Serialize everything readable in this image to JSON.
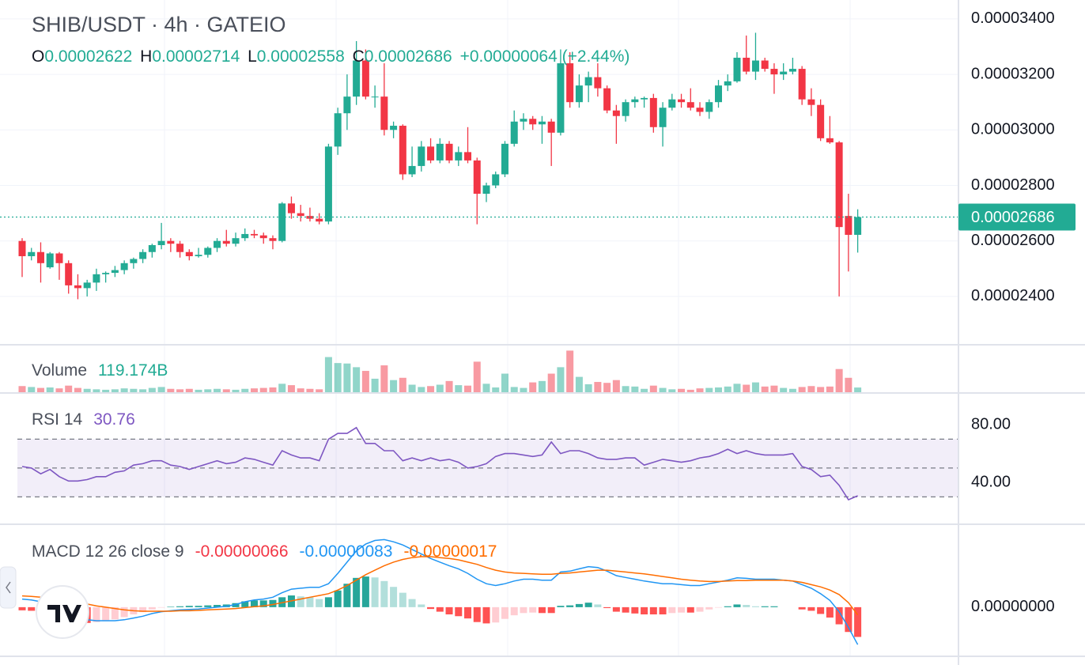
{
  "chart_data": [
    {
      "type": "candlestick",
      "title": "SHIB/USDT · 4h · GATEIO",
      "legend": [
        {
          "key": "O",
          "value": "0.00002622"
        },
        {
          "key": "H",
          "value": "0.00002714"
        },
        {
          "key": "L",
          "value": "0.00002558"
        },
        {
          "key": "C",
          "value": "0.00002686"
        }
      ],
      "change": "+0.00000064 (+2.44%)",
      "up_color": "#22ab94",
      "down_color": "#f23645",
      "open": [
        2.6e-05,
        2.545e-05,
        2.56e-05,
        2.505e-05,
        2.555e-05,
        2.52e-05,
        2.44e-05,
        2.43e-05,
        2.45e-05,
        2.48e-05,
        2.485e-05,
        2.495e-05,
        2.52e-05,
        2.535e-05,
        2.56e-05,
        2.585e-05,
        2.6e-05,
        2.59e-05,
        2.56e-05,
        2.545e-05,
        2.55e-05,
        2.575e-05,
        2.6e-05,
        2.59e-05,
        2.61e-05,
        2.625e-05,
        2.62e-05,
        2.61e-05,
        2.6e-05,
        2.735e-05,
        2.7e-05,
        2.69e-05,
        2.68e-05,
        2.67e-05,
        2.94e-05,
        3.06e-05,
        3.12e-05,
        3.25e-05,
        3.12e-05,
        3.12e-05,
        3e-05,
        3.015e-05,
        2.84e-05,
        2.87e-05,
        2.94e-05,
        2.89e-05,
        2.95e-05,
        2.89e-05,
        2.92e-05,
        2.89e-05,
        2.77e-05,
        2.8e-05,
        2.84e-05,
        2.95e-05,
        3.03e-05,
        3.04e-05,
        3.02e-05,
        3.03e-05,
        2.99e-05,
        3.24e-05,
        3.1e-05,
        3.16e-05,
        3.19e-05,
        3.15e-05,
        3.07e-05,
        3.05e-05,
        3.1e-05,
        3.11e-05,
        3.115e-05,
        3.01e-05,
        3.08e-05,
        3.11e-05,
        3.1e-05,
        3.08e-05,
        3.065e-05,
        3.1e-05,
        3.16e-05,
        3.175e-05,
        3.26e-05,
        3.21e-05,
        3.25e-05,
        3.22e-05,
        3.2e-05,
        3.21e-05,
        3.22e-05,
        3.11e-05,
        3.09e-05,
        2.97e-05,
        2.955e-05,
        2.69e-05,
        2.622e-05
      ],
      "high": [
        2.61e-05,
        2.575e-05,
        2.595e-05,
        2.56e-05,
        2.56e-05,
        2.53e-05,
        2.48e-05,
        2.46e-05,
        2.5e-05,
        2.49e-05,
        2.51e-05,
        2.53e-05,
        2.54e-05,
        2.57e-05,
        2.59e-05,
        2.665e-05,
        2.61e-05,
        2.6e-05,
        2.57e-05,
        2.575e-05,
        2.58e-05,
        2.61e-05,
        2.64e-05,
        2.63e-05,
        2.645e-05,
        2.64e-05,
        2.63e-05,
        2.62e-05,
        2.74e-05,
        2.76e-05,
        2.73e-05,
        2.72e-05,
        2.7e-05,
        2.95e-05,
        3.08e-05,
        3.2e-05,
        3.32e-05,
        3.29e-05,
        3.16e-05,
        3.24e-05,
        3.03e-05,
        3.02e-05,
        2.94e-05,
        2.96e-05,
        2.97e-05,
        2.97e-05,
        2.96e-05,
        2.94e-05,
        3.01e-05,
        2.9e-05,
        2.81e-05,
        2.85e-05,
        2.96e-05,
        3.07e-05,
        3.06e-05,
        3.05e-05,
        3.05e-05,
        3.04e-05,
        3.29e-05,
        3.28e-05,
        3.2e-05,
        3.21e-05,
        3.24e-05,
        3.16e-05,
        3.09e-05,
        3.11e-05,
        3.12e-05,
        3.12e-05,
        3.13e-05,
        3.1e-05,
        3.13e-05,
        3.13e-05,
        3.15e-05,
        3.1e-05,
        3.11e-05,
        3.18e-05,
        3.2e-05,
        3.28e-05,
        3.34e-05,
        3.35e-05,
        3.26e-05,
        3.24e-05,
        3.24e-05,
        3.26e-05,
        3.23e-05,
        3.15e-05,
        3.11e-05,
        3.05e-05,
        2.96e-05,
        2.77e-05,
        2.714e-05
      ],
      "low": [
        2.47e-05,
        2.53e-05,
        2.45e-05,
        2.5e-05,
        2.46e-05,
        2.41e-05,
        2.39e-05,
        2.4e-05,
        2.42e-05,
        2.45e-05,
        2.47e-05,
        2.48e-05,
        2.5e-05,
        2.52e-05,
        2.54e-05,
        2.57e-05,
        2.56e-05,
        2.54e-05,
        2.53e-05,
        2.54e-05,
        2.54e-05,
        2.56e-05,
        2.58e-05,
        2.58e-05,
        2.6e-05,
        2.61e-05,
        2.59e-05,
        2.57e-05,
        2.595e-05,
        2.68e-05,
        2.67e-05,
        2.67e-05,
        2.66e-05,
        2.66e-05,
        2.91e-05,
        3e-05,
        3.09e-05,
        3.11e-05,
        3.08e-05,
        2.98e-05,
        2.97e-05,
        2.82e-05,
        2.83e-05,
        2.85e-05,
        2.88e-05,
        2.88e-05,
        2.88e-05,
        2.87e-05,
        2.88e-05,
        2.66e-05,
        2.74e-05,
        2.79e-05,
        2.83e-05,
        2.94e-05,
        3e-05,
        3e-05,
        2.95e-05,
        2.87e-05,
        2.98e-05,
        3.08e-05,
        3.08e-05,
        3.1e-05,
        3.12e-05,
        3.06e-05,
        2.95e-05,
        3.03e-05,
        3.08e-05,
        3.08e-05,
        2.99e-05,
        2.94e-05,
        3.07e-05,
        3.08e-05,
        3.07e-05,
        3.05e-05,
        3.04e-05,
        3.08e-05,
        3.14e-05,
        3.17e-05,
        3.2e-05,
        3.18e-05,
        3.21e-05,
        3.13e-05,
        3.18e-05,
        3.2e-05,
        3.09e-05,
        3.05e-05,
        2.96e-05,
        2.95e-05,
        2.4e-05,
        2.49e-05,
        2.558e-05
      ],
      "close": [
        2.545e-05,
        2.56e-05,
        2.52e-05,
        2.555e-05,
        2.52e-05,
        2.44e-05,
        2.43e-05,
        2.45e-05,
        2.48e-05,
        2.485e-05,
        2.495e-05,
        2.52e-05,
        2.535e-05,
        2.56e-05,
        2.585e-05,
        2.6e-05,
        2.59e-05,
        2.56e-05,
        2.545e-05,
        2.55e-05,
        2.575e-05,
        2.6e-05,
        2.59e-05,
        2.61e-05,
        2.625e-05,
        2.62e-05,
        2.61e-05,
        2.6e-05,
        2.735e-05,
        2.7e-05,
        2.69e-05,
        2.68e-05,
        2.67e-05,
        2.94e-05,
        3.06e-05,
        3.12e-05,
        3.25e-05,
        3.12e-05,
        3.12e-05,
        3e-05,
        3.015e-05,
        2.84e-05,
        2.87e-05,
        2.94e-05,
        2.89e-05,
        2.95e-05,
        2.89e-05,
        2.92e-05,
        2.89e-05,
        2.77e-05,
        2.8e-05,
        2.84e-05,
        2.95e-05,
        3.03e-05,
        3.04e-05,
        3.02e-05,
        3.03e-05,
        2.99e-05,
        3.24e-05,
        3.1e-05,
        3.16e-05,
        3.19e-05,
        3.15e-05,
        3.07e-05,
        3.05e-05,
        3.1e-05,
        3.11e-05,
        3.115e-05,
        3.01e-05,
        3.08e-05,
        3.11e-05,
        3.1e-05,
        3.08e-05,
        3.065e-05,
        3.1e-05,
        3.16e-05,
        3.175e-05,
        3.26e-05,
        3.21e-05,
        3.25e-05,
        3.22e-05,
        3.2e-05,
        3.21e-05,
        3.22e-05,
        3.11e-05,
        3.09e-05,
        2.97e-05,
        2.955e-05,
        2.65e-05,
        2.622e-05,
        2.686e-05
      ],
      "ylim": [
        2.226e-05,
        3.468e-05
      ],
      "yticks": [
        {
          "value": 2.4e-05,
          "label": "0.00002400"
        },
        {
          "value": 2.6e-05,
          "label": "0.00002600"
        },
        {
          "value": 2.8e-05,
          "label": "0.00002800"
        },
        {
          "value": 3e-05,
          "label": "0.00003000"
        },
        {
          "value": 3.2e-05,
          "label": "0.00003200"
        },
        {
          "value": 3.4e-05,
          "label": "0.00003400"
        }
      ],
      "last_price": {
        "value": 2.686e-05,
        "label": "0.00002686"
      }
    },
    {
      "type": "bar",
      "name": "Volume",
      "last_label": "119.174B",
      "values": [
        150,
        130,
        110,
        120,
        100,
        160,
        110,
        90,
        80,
        70,
        80,
        100,
        90,
        80,
        110,
        130,
        90,
        80,
        90,
        70,
        80,
        90,
        80,
        70,
        90,
        100,
        110,
        120,
        200,
        170,
        100,
        90,
        80,
        780,
        650,
        640,
        560,
        480,
        310,
        600,
        280,
        330,
        180,
        130,
        150,
        180,
        260,
        170,
        160,
        680,
        200,
        120,
        420,
        130,
        110,
        230,
        260,
        420,
        560,
        920,
        350,
        190,
        240,
        220,
        280,
        150,
        140,
        90,
        160,
        110,
        80,
        90,
        70,
        100,
        110,
        120,
        140,
        200,
        180,
        230,
        140,
        160,
        110,
        90,
        130,
        150,
        130,
        140,
        520,
        330,
        119.174
      ],
      "ylim": [
        0,
        1030
      ]
    },
    {
      "type": "line",
      "name": "RSI 14",
      "color": "#7e57c2",
      "values": [
        51,
        50,
        46,
        49,
        44,
        41,
        41,
        42,
        44,
        44,
        47,
        48,
        52,
        53,
        55,
        55,
        52,
        51,
        49,
        51,
        53,
        55,
        53,
        54,
        57,
        56,
        54,
        52,
        62,
        59,
        57,
        57,
        55,
        70,
        74,
        74,
        78,
        67,
        67,
        62,
        62,
        55,
        57,
        55,
        57,
        55,
        56,
        54,
        50,
        51,
        53,
        58,
        60,
        60,
        59,
        58,
        59,
        68,
        60,
        62,
        62,
        60,
        57,
        56,
        56,
        57,
        57,
        52,
        54,
        56,
        55,
        54,
        55,
        57,
        58,
        60,
        63,
        60,
        62,
        60,
        59,
        59,
        59,
        60,
        51,
        49,
        44,
        45,
        38,
        28,
        30.76
      ],
      "bands": [
        70,
        50,
        30
      ],
      "ylim": [
        11,
        102
      ],
      "yticks": [
        {
          "value": 40,
          "label": "40.00"
        },
        {
          "value": 80,
          "label": "80.00"
        }
      ]
    },
    {
      "type": "macd",
      "name": "MACD 12 26 close 9",
      "histogram": {
        "label": "-0.00000066",
        "color": "#f23645",
        "colors": [
          "#26a69a",
          "#b2dfdb",
          "#ff5252",
          "#ffcdd2"
        ],
        "values": [
          -7e-08,
          -8e-08,
          -1e-07,
          -1.5e-07,
          -2.3e-07,
          -2.7e-07,
          -3.1e-07,
          -3.5e-07,
          -3.3e-07,
          -3e-07,
          -2.7e-07,
          -2.2e-07,
          -1.6e-07,
          -1.1e-07,
          -5e-08,
          -1e-08,
          1e-08,
          2e-08,
          3e-08,
          3e-08,
          4e-08,
          5e-08,
          6e-08,
          9e-08,
          1.3e-07,
          1.5e-07,
          1.5e-07,
          1.6e-07,
          2.2e-07,
          2.6e-07,
          2.4e-07,
          2.2e-07,
          1.8e-07,
          2.2e-07,
          3.7e-07,
          5.2e-07,
          6.5e-07,
          6.8e-07,
          6.6e-07,
          5.8e-07,
          4.5e-07,
          3.2e-07,
          1.8e-07,
          6e-08,
          -4e-08,
          -1e-07,
          -1.6e-07,
          -2e-07,
          -2.5e-07,
          -3.3e-07,
          -3.6e-07,
          -3.4e-07,
          -2.6e-07,
          -1.8e-07,
          -1.3e-07,
          -1.2e-07,
          -1.3e-07,
          -1.3e-07,
          3e-08,
          4e-08,
          7e-08,
          1e-07,
          6e-08,
          -2e-08,
          -1e-07,
          -1.2e-07,
          -1.4e-07,
          -1.6e-07,
          -1.6e-07,
          -1.6e-07,
          -1.3e-07,
          -1.2e-07,
          -1.2e-07,
          -1e-07,
          -5e-08,
          -1e-08,
          2e-08,
          6e-08,
          5e-08,
          2e-08,
          2e-08,
          2e-08,
          0,
          0,
          -5e-08,
          -8e-08,
          -1.5e-07,
          -2.3e-07,
          -3.8e-07,
          -5.5e-07,
          -6.6e-07
        ]
      },
      "macd": {
        "label": "-0.00000083",
        "color": "#2196f3",
        "values": [
          1.8e-07,
          1.6e-07,
          1.2e-07,
          5e-08,
          -5e-08,
          -1.2e-07,
          -2e-07,
          -2.8e-07,
          -3e-07,
          -3e-07,
          -3e-07,
          -2.8e-07,
          -2.4e-07,
          -2e-07,
          -1.4e-07,
          -1e-07,
          -8e-08,
          -6e-08,
          -5e-08,
          -4e-08,
          -2e-08,
          0,
          2e-08,
          6e-08,
          1.2e-07,
          1.6e-07,
          1.8e-07,
          2.2e-07,
          3.2e-07,
          4e-07,
          4.2e-07,
          4.4e-07,
          4.4e-07,
          5.2e-07,
          7.5e-07,
          1e-06,
          1.25e-06,
          1.4e-06,
          1.48e-06,
          1.5e-06,
          1.45e-06,
          1.38e-06,
          1.28e-06,
          1.18e-06,
          1.08e-06,
          1e-06,
          9.2e-07,
          8.5e-07,
          7.5e-07,
          6.2e-07,
          5.2e-07,
          4.8e-07,
          5.2e-07,
          5.8e-07,
          6.2e-07,
          6.2e-07,
          6e-07,
          6e-07,
          7.8e-07,
          8e-07,
          8.5e-07,
          9e-07,
          8.8e-07,
          8e-07,
          7e-07,
          6.6e-07,
          6.2e-07,
          5.8e-07,
          5.5e-07,
          5.2e-07,
          5.2e-07,
          5e-07,
          4.8e-07,
          4.8e-07,
          5.2e-07,
          5.6e-07,
          6e-07,
          6.5e-07,
          6.4e-07,
          6.2e-07,
          6.2e-07,
          6.2e-07,
          6e-07,
          5.8e-07,
          5e-07,
          4.2e-07,
          3e-07,
          1.5e-07,
          -1e-07,
          -4.5e-07,
          -8.3e-07
        ]
      },
      "signal": {
        "label": "-0.00000017",
        "color": "#ff6d00",
        "values": [
          2.5e-07,
          2.4e-07,
          2.2e-07,
          2e-07,
          1.8e-07,
          1.5e-07,
          1.1e-07,
          7e-08,
          3e-08,
          0,
          -3e-08,
          -6e-08,
          -8e-08,
          -9e-08,
          -9e-08,
          -9e-08,
          -9e-08,
          -8e-08,
          -8e-08,
          -7e-08,
          -6e-08,
          -5e-08,
          -4e-08,
          -3e-08,
          -1e-08,
          1e-08,
          3e-08,
          6e-08,
          1e-07,
          1.4e-07,
          1.8e-07,
          2.2e-07,
          2.6e-07,
          3e-07,
          3.8e-07,
          4.8e-07,
          6e-07,
          7.2e-07,
          8.2e-07,
          9.2e-07,
          1e-06,
          1.06e-06,
          1.1e-06,
          1.12e-06,
          1.12e-06,
          1.1e-06,
          1.08e-06,
          1.05e-06,
          1e-06,
          9.5e-07,
          8.8e-07,
          8.2e-07,
          7.8e-07,
          7.6e-07,
          7.5e-07,
          7.4e-07,
          7.3e-07,
          7.3e-07,
          7.5e-07,
          7.6e-07,
          7.8e-07,
          8e-07,
          8.2e-07,
          8.2e-07,
          8e-07,
          7.8e-07,
          7.6e-07,
          7.4e-07,
          7.1e-07,
          6.8e-07,
          6.5e-07,
          6.2e-07,
          6e-07,
          5.8e-07,
          5.7e-07,
          5.7e-07,
          5.8e-07,
          5.9e-07,
          5.9e-07,
          6e-07,
          6e-07,
          6e-07,
          6e-07,
          5.8e-07,
          5.5e-07,
          5e-07,
          4.5e-07,
          3.8e-07,
          2.8e-07,
          1e-07,
          -1.7e-07
        ]
      },
      "ylim": [
        -1.09e-06,
        1.84e-06
      ],
      "yticks": [
        {
          "value": 0,
          "label": "0.00000000"
        }
      ]
    }
  ]
}
